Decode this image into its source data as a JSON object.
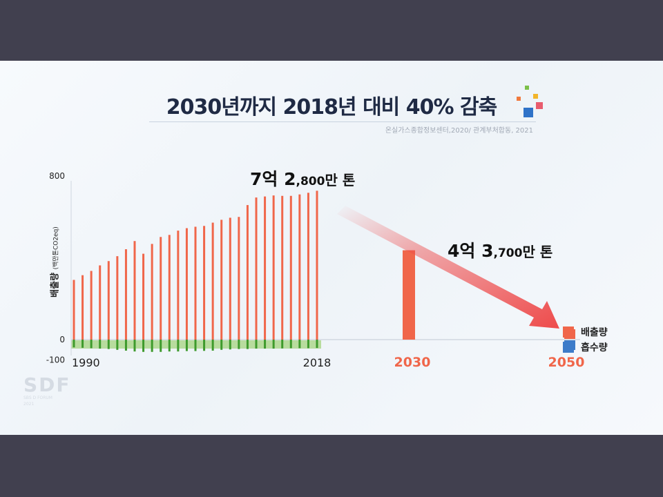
{
  "title": "2030년까지 2018년 대비 40% 감축",
  "source": "온실가스종합정보센터,2020/ 관계부처합동, 2021",
  "callouts": {
    "c2018": {
      "big1": "7억 ",
      "big2": "2",
      "small": ",800",
      "tail": "만 톤"
    },
    "c2030": {
      "big1": "4억 ",
      "big2": "3",
      "small": ",700",
      "tail": "만 톤"
    }
  },
  "legend": [
    {
      "label": "배출량",
      "color": "#f0664a"
    },
    {
      "label": "흡수량",
      "color": "#3d7cc9"
    }
  ],
  "ylabel_main": "배출량",
  "ylabel_unit": "(백만톤CO2eq)",
  "watermark": {
    "big": "SDF",
    "line1": "SBS D FORUM",
    "line2": "2021"
  },
  "colors": {
    "emission": "#f0664a",
    "absorption": "#3e9a2c",
    "absorption_band": "#b8dc9e",
    "arrow": "#ee4b4b"
  },
  "chart_data": {
    "type": "bar",
    "ylim": [
      -100,
      800
    ],
    "yticks": [
      800,
      0,
      -100
    ],
    "xticklabels": [
      "1990",
      "2018",
      "2030",
      "2050"
    ],
    "grid": false,
    "legend_position": "right",
    "series": [
      {
        "name": "배출량",
        "x": [
          1990,
          1991,
          1992,
          1993,
          1994,
          1995,
          1996,
          1997,
          1998,
          1999,
          2000,
          2001,
          2002,
          2003,
          2004,
          2005,
          2006,
          2007,
          2008,
          2009,
          2010,
          2011,
          2012,
          2013,
          2014,
          2015,
          2016,
          2017,
          2018,
          2030
        ],
        "values": [
          292,
          315,
          336,
          363,
          384,
          408,
          442,
          482,
          420,
          468,
          502,
          512,
          533,
          545,
          552,
          556,
          572,
          586,
          596,
          600,
          658,
          695,
          700,
          705,
          703,
          703,
          710,
          718,
          728,
          437
        ]
      },
      {
        "name": "흡수량",
        "x": [
          1990,
          1991,
          1992,
          1993,
          1994,
          1995,
          1996,
          1997,
          1998,
          1999,
          2000,
          2001,
          2002,
          2003,
          2004,
          2005,
          2006,
          2007,
          2008,
          2009,
          2010,
          2011,
          2012,
          2013,
          2014,
          2015,
          2016,
          2017,
          2018
        ],
        "values": [
          -38,
          -40,
          -42,
          -44,
          -46,
          -50,
          -54,
          -58,
          -60,
          -60,
          -60,
          -58,
          -58,
          -56,
          -56,
          -55,
          -54,
          -50,
          -48,
          -46,
          -46,
          -44,
          -44,
          -44,
          -43,
          -42,
          -42,
          -42,
          -41
        ]
      }
    ]
  }
}
